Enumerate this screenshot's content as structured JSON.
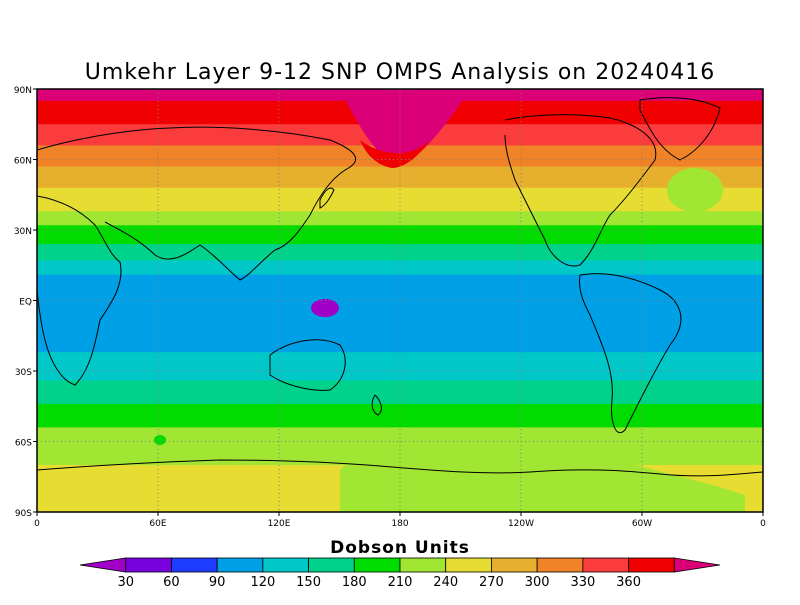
{
  "title": "Umkehr Layer 9-12 SNP OMPS Analysis on 20240416",
  "map": {
    "lat_labels": [
      "90N",
      "60N",
      "30N",
      "EQ",
      "30S",
      "60S",
      "90S"
    ],
    "lon_labels": [
      "0",
      "60E",
      "120E",
      "180",
      "120W",
      "60W",
      "0"
    ],
    "grid": "dotted",
    "projection": "cylindrical equidistant",
    "lon_range": [
      0,
      360
    ],
    "lat_range": [
      -90,
      90
    ]
  },
  "colorbar": {
    "title": "Dobson Units",
    "labels": [
      "30",
      "60",
      "90",
      "120",
      "150",
      "180",
      "210",
      "240",
      "270",
      "300",
      "330",
      "360"
    ],
    "colors": [
      "#a000c8",
      "#7800dc",
      "#1e3cff",
      "#00a0e6",
      "#00c8c8",
      "#00d28c",
      "#00dc00",
      "#a0e632",
      "#e6dc32",
      "#e6af2d",
      "#f08228",
      "#fa3c3c",
      "#f00000",
      "#dc0078"
    ]
  },
  "chart_data": {
    "type": "heatmap",
    "title": "Umkehr Layer 9-12 SNP OMPS Analysis on 20240416",
    "units": "Dobson Units",
    "levels": [
      30,
      60,
      90,
      120,
      150,
      180,
      210,
      240,
      270,
      300,
      330,
      360
    ],
    "zonal_profile": {
      "lat": [
        90,
        80,
        70,
        60,
        50,
        40,
        30,
        20,
        10,
        0,
        -10,
        -20,
        -30,
        -40,
        -50,
        -60,
        -70,
        -80,
        -90
      ],
      "value": [
        370,
        345,
        310,
        280,
        245,
        215,
        170,
        130,
        80,
        70,
        75,
        85,
        110,
        140,
        170,
        200,
        210,
        225,
        225
      ]
    }
  }
}
